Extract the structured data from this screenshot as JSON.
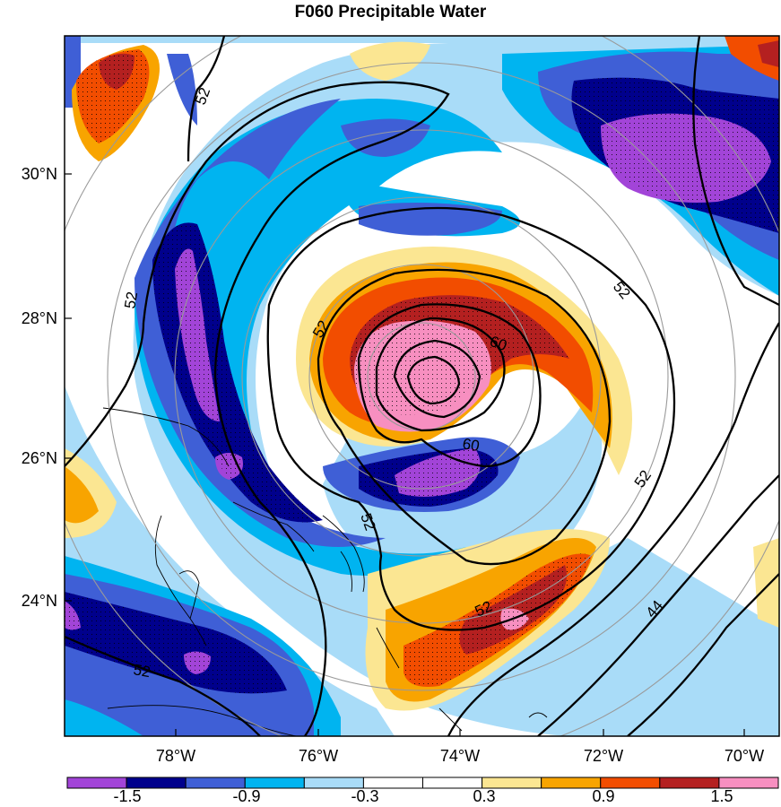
{
  "title": "F060 Precipitable Water",
  "lat_labels": [
    "30°N",
    "28°N",
    "26°N",
    "24°N"
  ],
  "lon_labels": [
    "78°W",
    "76°W",
    "74°W",
    "72°W",
    "70°W"
  ],
  "colorbar": {
    "labels": [
      "-1.5",
      "-0.9",
      "-0.3",
      "0.3",
      "0.9",
      "1.5"
    ],
    "colors": [
      "#a244d8",
      "#00008c",
      "#3f5fd6",
      "#00b4f0",
      "#a9dcf8",
      "#ffffff",
      "#ffffff",
      "#fbe692",
      "#f8a400",
      "#f24d00",
      "#b42020",
      "#f78fc0"
    ]
  },
  "contour_labels": [
    "52",
    "52",
    "52",
    "60",
    "60",
    "52",
    "52",
    "52",
    "44",
    "52"
  ],
  "map": {
    "center_lon": -74.6,
    "center_lat": 27.3
  }
}
